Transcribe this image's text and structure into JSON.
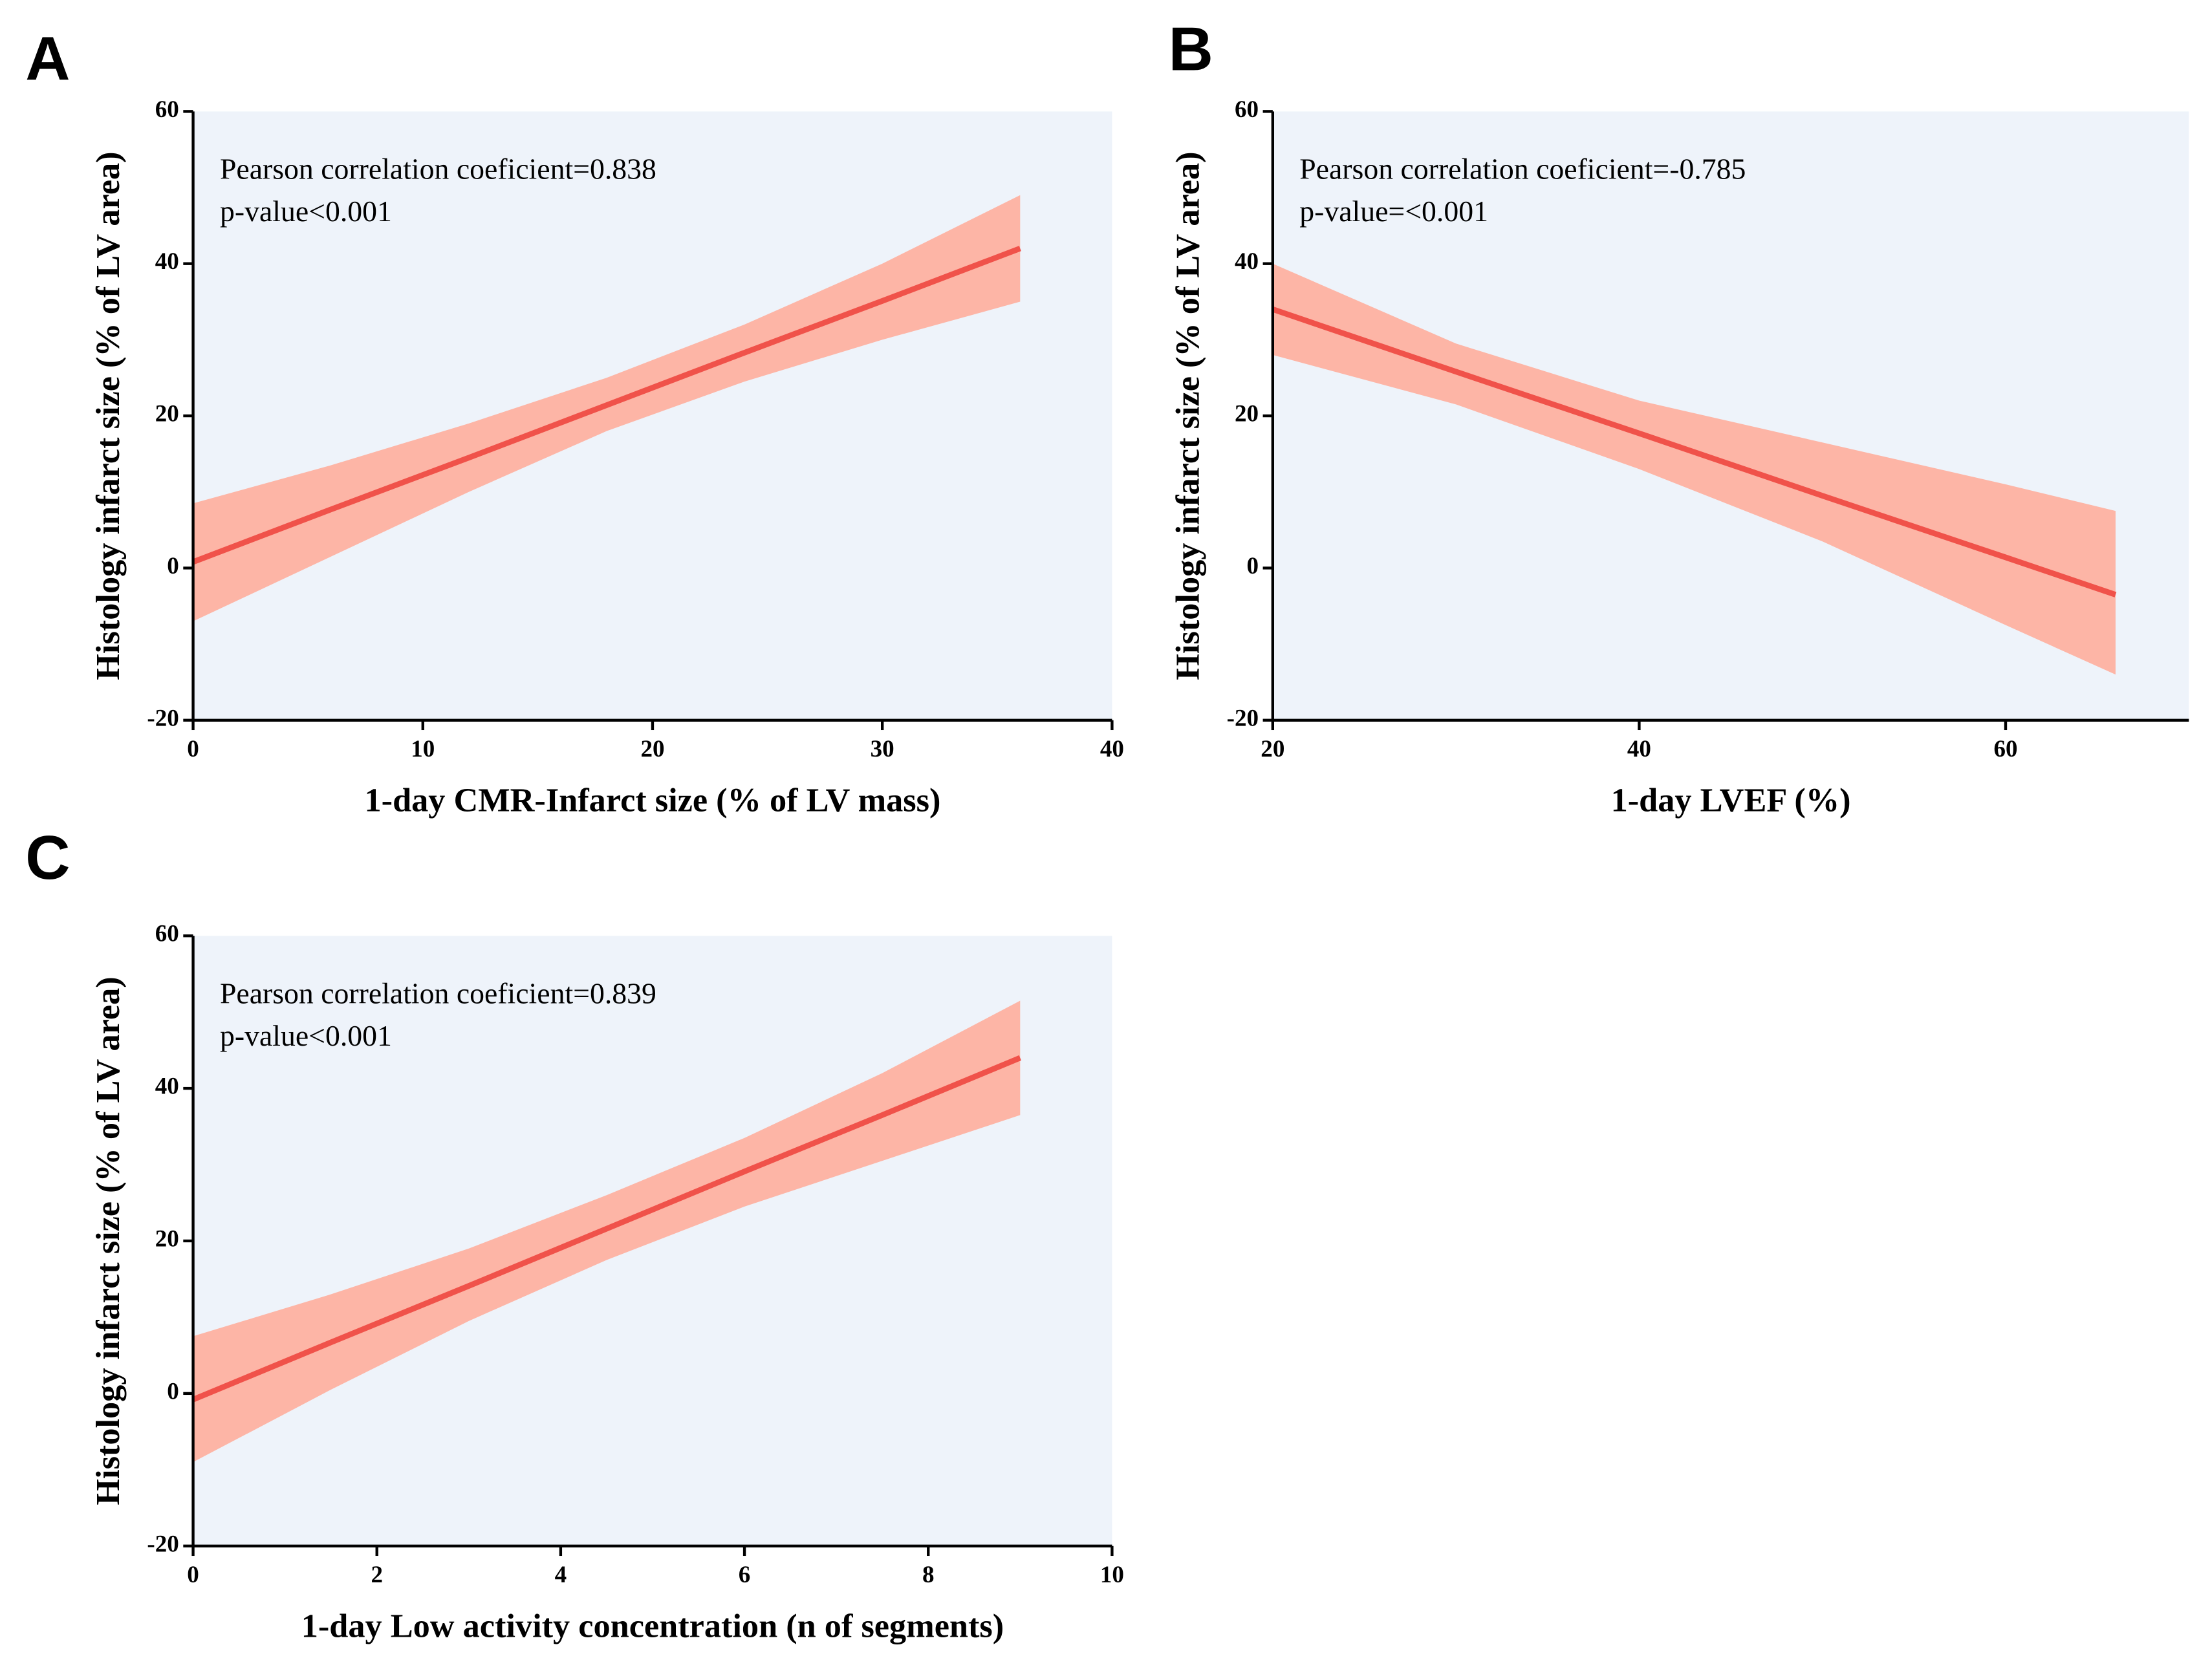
{
  "chart_data": [
    {
      "type": "line",
      "panel": "A",
      "xlabel": "1-day CMR-Infarct size (% of LV mass)",
      "ylabel": "Histology infarct size (% of LV area)",
      "annotations": [
        "Pearson correlation coeficient=0.838",
        "p-value<0.001"
      ],
      "x": [
        0,
        6,
        12,
        18,
        24,
        30,
        36
      ],
      "series": [
        {
          "color": "#f0524a",
          "values": [
            0.8,
            7.7,
            14.5,
            21.4,
            28.3,
            35.1,
            42
          ]
        }
      ],
      "band": {
        "color": "#fdb5a6",
        "upper": [
          8.5,
          13.5,
          19,
          25,
          32,
          40,
          49
        ],
        "lower": [
          -7,
          1.5,
          10,
          18,
          24.5,
          30,
          35
        ]
      },
      "xlim": [
        0,
        40
      ],
      "xticks": [
        0,
        10,
        20,
        30,
        40
      ],
      "ylim": [
        -20,
        60
      ],
      "yticks": [
        -20,
        0,
        20,
        40,
        60
      ],
      "background": "#eef3fa"
    },
    {
      "type": "line",
      "panel": "B",
      "xlabel": "1-day LVEF (%)",
      "ylabel": "Histology infarct size (% of LV area)",
      "annotations": [
        "Pearson correlation coeficient=-0.785",
        "p-value=<0.001"
      ],
      "x": [
        20,
        30,
        40,
        50,
        60,
        66
      ],
      "series": [
        {
          "color": "#f0524a",
          "values": [
            34,
            25.8,
            17.7,
            9.5,
            1.4,
            -3.5
          ]
        }
      ],
      "band": {
        "color": "#fdb5a6",
        "upper": [
          40,
          29.5,
          22,
          16.5,
          11,
          7.5
        ],
        "lower": [
          28,
          21.5,
          13,
          3.5,
          -7.5,
          -14
        ]
      },
      "xlim": [
        20,
        70
      ],
      "xticks": [
        20,
        40,
        60
      ],
      "ylim": [
        -20,
        60
      ],
      "yticks": [
        -20,
        0,
        20,
        40,
        60
      ],
      "background": "#eef3fa"
    },
    {
      "type": "line",
      "panel": "C",
      "xlabel": "1-day Low activity concentration (n of segments)",
      "ylabel": "Histology infarct size (% of LV area)",
      "annotations": [
        "Pearson correlation coeficient=0.839",
        "p-value<0.001"
      ],
      "x": [
        0,
        1.5,
        3,
        4.5,
        6,
        7.5,
        9
      ],
      "series": [
        {
          "color": "#f0524a",
          "values": [
            -0.8,
            6.7,
            14.1,
            21.6,
            29.1,
            36.5,
            44
          ]
        }
      ],
      "band": {
        "color": "#fdb5a6",
        "upper": [
          7.5,
          13,
          19,
          26,
          33.5,
          42,
          51.5
        ],
        "lower": [
          -9,
          0.5,
          9.5,
          17.5,
          24.5,
          30.5,
          36.5
        ]
      },
      "xlim": [
        0,
        10
      ],
      "xticks": [
        0,
        2,
        4,
        6,
        8,
        10
      ],
      "ylim": [
        -20,
        60
      ],
      "yticks": [
        -20,
        0,
        20,
        40,
        60
      ],
      "background": "#eef3fa"
    }
  ]
}
